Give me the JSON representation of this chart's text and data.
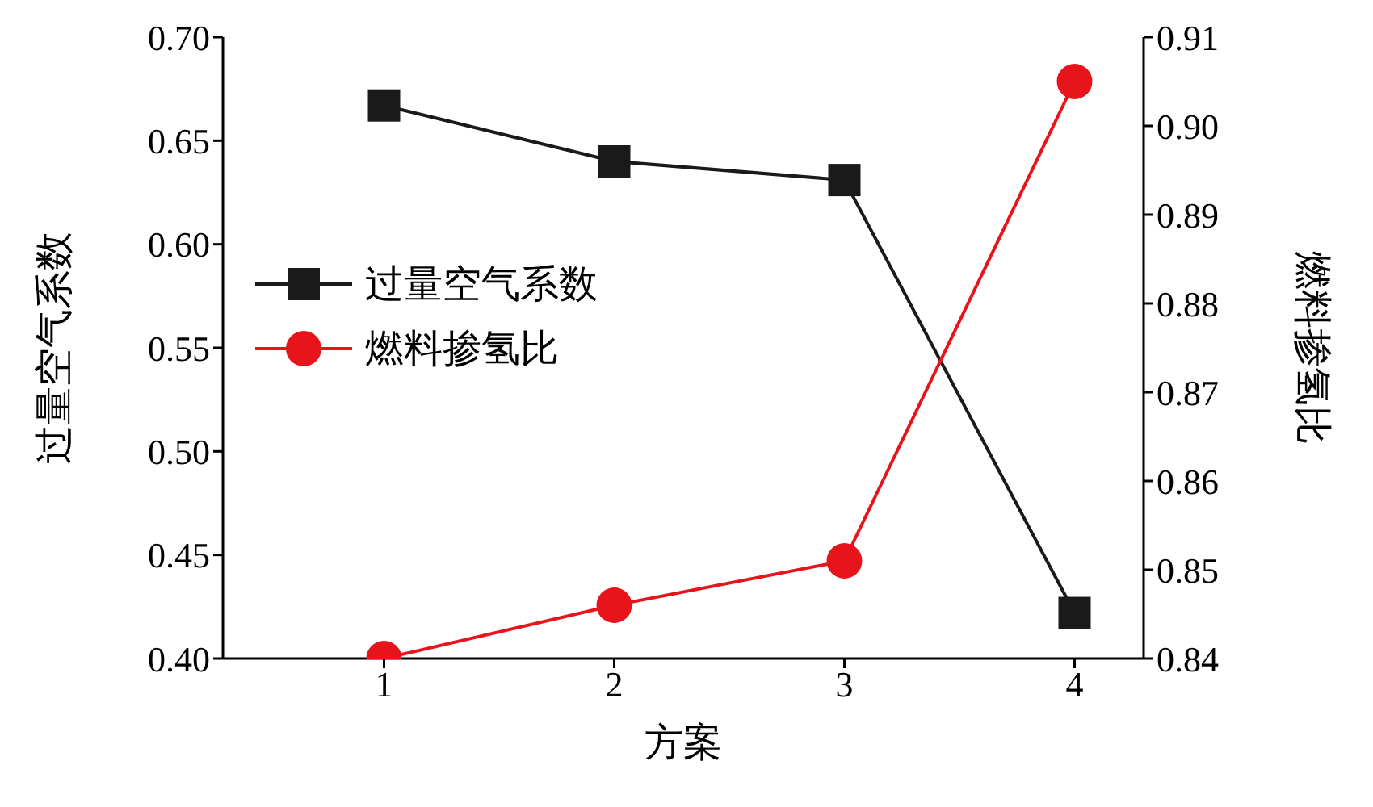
{
  "chart_data": {
    "type": "line",
    "xlabel": "方案",
    "ylabel": "过量空气系数",
    "y2label": "燃料掺氢比",
    "categories": [
      "1",
      "2",
      "3",
      "4"
    ],
    "series": [
      {
        "name": "过量空气系数",
        "color": "#1a1a1a",
        "values": [
          0.667,
          0.64,
          0.631,
          0.422
        ],
        "marker": "square"
      },
      {
        "name": "燃料掺氢比",
        "color": "#e8141c",
        "values": [
          0.84,
          0.846,
          0.851,
          0.905
        ],
        "marker": "circle",
        "axis": "y2"
      }
    ],
    "ylim": [
      0.4,
      0.7
    ],
    "yticks": [
      {
        "value": 0.4,
        "label": "0.40"
      },
      {
        "value": 0.45,
        "label": "0.45"
      },
      {
        "value": 0.5,
        "label": "0.50"
      },
      {
        "value": 0.55,
        "label": "0.55"
      },
      {
        "value": 0.6,
        "label": "0.60"
      },
      {
        "value": 0.65,
        "label": "0.65"
      },
      {
        "value": 0.7,
        "label": "0.70"
      }
    ],
    "y2lim": [
      0.84,
      0.91
    ],
    "y2ticks": [
      {
        "value": 0.84,
        "label": "0.84"
      },
      {
        "value": 0.85,
        "label": "0.85"
      },
      {
        "value": 0.86,
        "label": "0.86"
      },
      {
        "value": 0.87,
        "label": "0.87"
      },
      {
        "value": 0.88,
        "label": "0.88"
      },
      {
        "value": 0.89,
        "label": "0.89"
      },
      {
        "value": 0.9,
        "label": "0.90"
      },
      {
        "value": 0.91,
        "label": "0.91"
      }
    ],
    "grid": false,
    "legend": "left",
    "line_style": "solid"
  }
}
